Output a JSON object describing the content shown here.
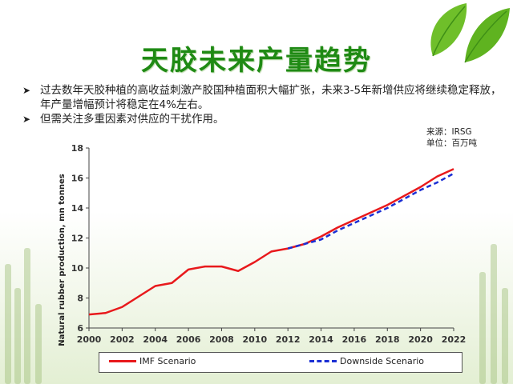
{
  "slide": {
    "title": "天胶未来产量趋势",
    "bullets": [
      "过去数年天胶种植的高收益刺激产胶国种植面积大幅扩张，未来3-5年新增供应将继续稳定释放，年产量增幅预计将稳定在4%左右。",
      "但需关注多重因素对供应的干扰作用。"
    ],
    "source": "来源：IRSG",
    "unit": "单位：百万吨"
  },
  "chart_data": {
    "type": "line",
    "ylabel": "Natural rubber production, mn tonnes",
    "xlim": [
      2000,
      2022
    ],
    "ylim": [
      6,
      18
    ],
    "x_ticks": [
      2000,
      2002,
      2004,
      2006,
      2008,
      2010,
      2012,
      2014,
      2016,
      2018,
      2020,
      2022
    ],
    "y_ticks": [
      6,
      8,
      10,
      12,
      14,
      16,
      18
    ],
    "grid": false,
    "legend_position": "bottom",
    "series": [
      {
        "name": "IMF Scenario",
        "color": "#e8191c",
        "style": "solid",
        "x": [
          2000,
          2001,
          2002,
          2003,
          2004,
          2005,
          2006,
          2007,
          2008,
          2009,
          2010,
          2011,
          2012,
          2013,
          2014,
          2015,
          2016,
          2017,
          2018,
          2019,
          2020,
          2021,
          2022
        ],
        "values": [
          6.9,
          7.0,
          7.4,
          8.1,
          8.8,
          9.0,
          9.9,
          10.1,
          10.1,
          9.8,
          10.4,
          11.1,
          11.3,
          11.6,
          12.1,
          12.7,
          13.2,
          13.7,
          14.2,
          14.8,
          15.4,
          16.1,
          16.6
        ]
      },
      {
        "name": "Downside Scenario",
        "color": "#1b2fd4",
        "style": "dashed",
        "x": [
          2012,
          2013,
          2014,
          2015,
          2016,
          2017,
          2018,
          2019,
          2020,
          2021,
          2022
        ],
        "values": [
          11.3,
          11.6,
          11.9,
          12.5,
          13.0,
          13.5,
          14.0,
          14.6,
          15.2,
          15.7,
          16.3
        ]
      }
    ]
  },
  "colors": {
    "title": "#1f8a14",
    "leaf": "#6fbf2a",
    "leaf_dark": "#3e8f16"
  }
}
